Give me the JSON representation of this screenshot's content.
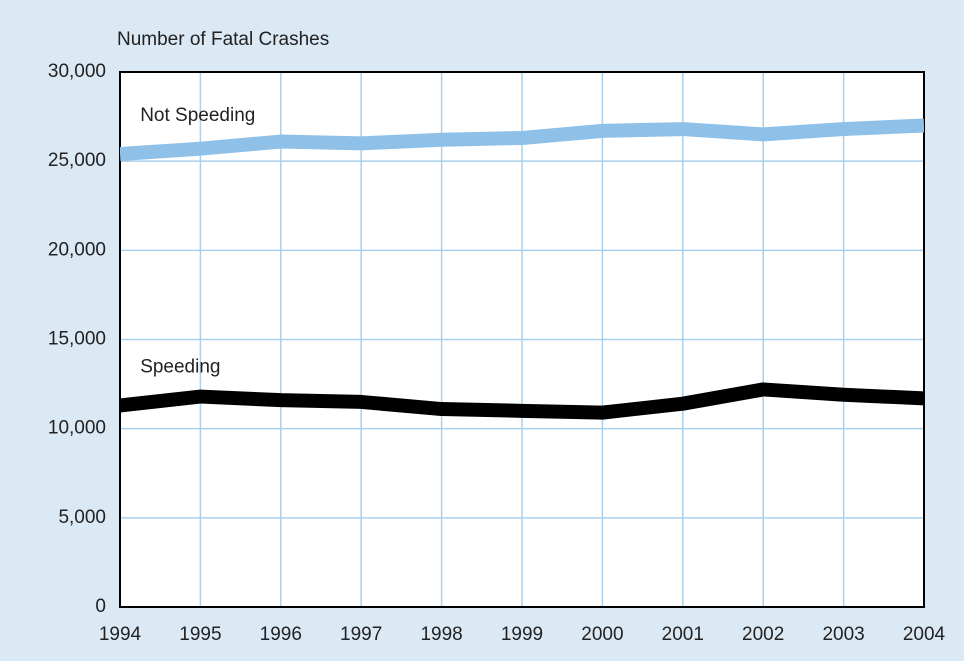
{
  "chart_data": {
    "type": "line",
    "y_axis_label": "Number of Fatal Crashes",
    "x": [
      1994,
      1995,
      1996,
      1997,
      1998,
      1999,
      2000,
      2001,
      2002,
      2003,
      2004
    ],
    "series": [
      {
        "name": "Not Speeding",
        "color": "#8ec0e8",
        "values": [
          25400,
          25700,
          26100,
          26000,
          26200,
          26300,
          26700,
          26800,
          26500,
          26800,
          27000
        ]
      },
      {
        "name": "Speeding",
        "color": "#000000",
        "values": [
          11300,
          11800,
          11600,
          11500,
          11100,
          11000,
          10900,
          11400,
          12200,
          11900,
          11700
        ]
      }
    ],
    "xlim": [
      1994,
      2004
    ],
    "xticks": [
      1994,
      1995,
      1996,
      1997,
      1998,
      1999,
      2000,
      2001,
      2002,
      2003,
      2004
    ],
    "ylim": [
      0,
      30000
    ],
    "yticks": [
      0,
      {
        "value": 5000,
        "label": "5,000"
      },
      {
        "value": 10000,
        "label": "10,000"
      },
      {
        "value": 15000,
        "label": "15,000"
      },
      {
        "value": 20000,
        "label": "20,000"
      },
      {
        "value": 25000,
        "label": "25,000"
      },
      {
        "value": 30000,
        "label": "30,000"
      }
    ],
    "grid": true
  }
}
